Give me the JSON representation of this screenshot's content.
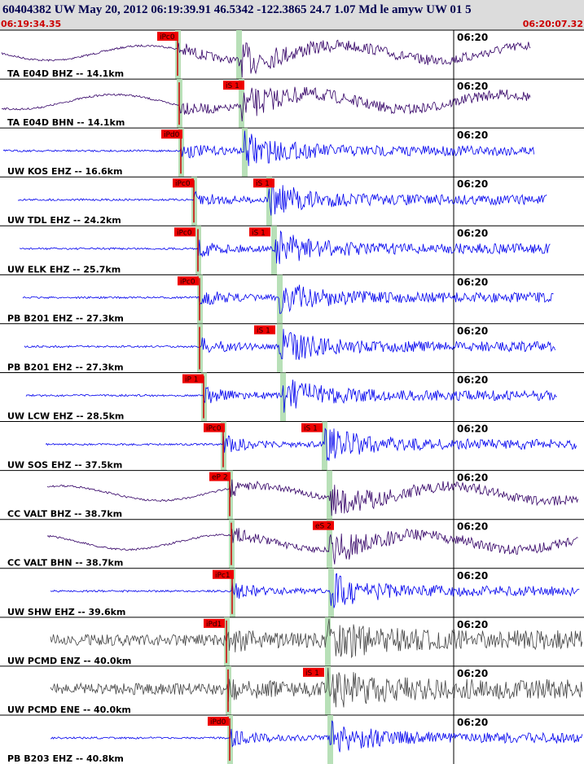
{
  "header": {
    "title": "60404382 UW May 20, 2012 06:19:39.91   46.5342 -122.3865 24.7 1.07 Md le amyw UW 01   5",
    "start_time": "06:19:34.35",
    "end_time": "06:20:07.32"
  },
  "traces": [
    {
      "label": "TA E04D BHZ -- 14.1km",
      "time_label": "06:20",
      "picks": [
        {
          "label": "iPc0"
        }
      ]
    },
    {
      "label": "TA E04D BHN -- 14.1km",
      "time_label": "06:20",
      "picks": [
        {
          "label": "iS 1"
        }
      ]
    },
    {
      "label": "UW KOS EHZ -- 16.6km",
      "time_label": "06:20",
      "picks": [
        {
          "label": "iPd0"
        }
      ]
    },
    {
      "label": "UW TDL EHZ -- 24.2km",
      "time_label": "06:20",
      "picks": [
        {
          "label": "iPc0"
        },
        {
          "label": "iS 1"
        }
      ]
    },
    {
      "label": "UW ELK EHZ -- 25.7km",
      "time_label": "06:20",
      "picks": [
        {
          "label": "iPc0"
        },
        {
          "label": "iS 1"
        }
      ]
    },
    {
      "label": "PB B201 EHZ -- 27.3km",
      "time_label": "06:20",
      "picks": [
        {
          "label": "iPc0"
        }
      ]
    },
    {
      "label": "PB B201 EH2 -- 27.3km",
      "time_label": "06:20",
      "picks": [
        {
          "label": "iS 1"
        }
      ]
    },
    {
      "label": "UW LCW EHZ -- 28.5km",
      "time_label": "06:20",
      "picks": [
        {
          "label": "iP 1"
        }
      ]
    },
    {
      "label": "UW SOS EHZ -- 37.5km",
      "time_label": "06:20",
      "picks": [
        {
          "label": "iPc0"
        },
        {
          "label": "iS 1"
        }
      ]
    },
    {
      "label": "CC VALT BHZ -- 38.7km",
      "time_label": "06:20",
      "picks": [
        {
          "label": "eP 2"
        }
      ]
    },
    {
      "label": "CC VALT BHN -- 38.7km",
      "time_label": "06:20",
      "picks": [
        {
          "label": "eS 2"
        }
      ]
    },
    {
      "label": "UW SHW EHZ -- 39.6km",
      "time_label": "06:20",
      "picks": [
        {
          "label": "iPc1"
        }
      ]
    },
    {
      "label": "UW PCMD ENZ -- 40.0km",
      "time_label": "06:20",
      "picks": [
        {
          "label": "iPd1"
        }
      ]
    },
    {
      "label": "UW PCMD ENE -- 40.0km",
      "time_label": "06:20",
      "picks": [
        {
          "label": "iS 1"
        }
      ]
    },
    {
      "label": "PB B203 EHZ -- 40.8km",
      "time_label": "06:20",
      "picks": [
        {
          "label": "iPd0"
        }
      ]
    }
  ]
}
